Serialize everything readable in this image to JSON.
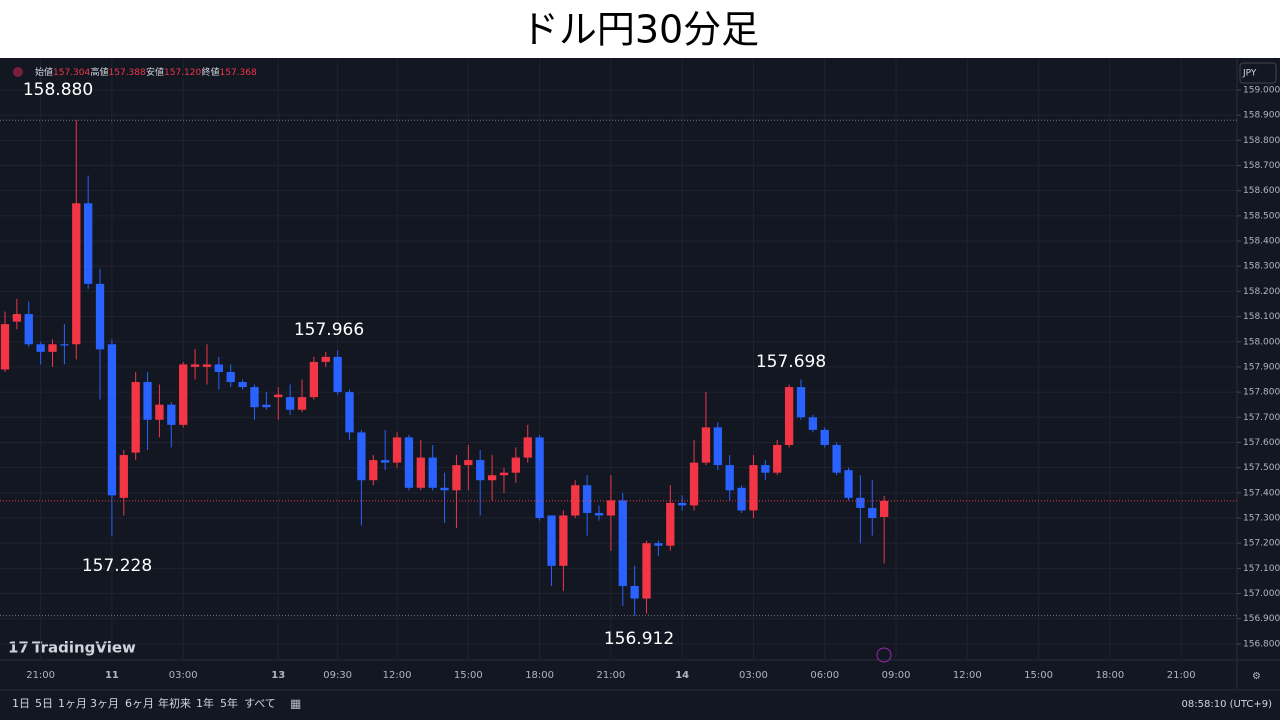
{
  "chart_data": {
    "type": "candlestick",
    "title": "ドル円30分足",
    "header": [
      {
        "label": "始値",
        "value": "157.304"
      },
      {
        "label": "高値",
        "value": "157.388"
      },
      {
        "label": "安値",
        "value": "157.120"
      },
      {
        "label": "終値",
        "value": "157.368"
      }
    ],
    "currency": "JPY",
    "logo": "TradingView",
    "annotations": [
      "158.880",
      "157.228",
      "157.966",
      "156.912",
      "157.698"
    ],
    "up_color": "#f23645",
    "down_color": "#2962ff",
    "grid": true,
    "x": [
      0,
      1,
      2,
      3,
      4,
      5,
      6,
      7,
      8,
      9,
      10,
      11,
      12,
      13,
      14,
      15,
      16,
      17,
      18,
      19,
      20,
      21,
      22,
      23,
      24,
      25,
      26,
      27,
      28,
      29,
      30,
      31,
      32,
      33,
      34,
      35,
      36,
      37,
      38,
      39,
      40,
      41,
      42,
      43,
      44,
      45,
      46,
      47,
      48,
      49,
      50,
      51,
      52,
      53,
      54,
      55,
      56,
      57,
      58,
      59,
      60,
      61,
      62,
      63,
      64,
      65,
      66,
      67,
      68,
      69,
      70,
      71,
      72,
      73,
      74
    ],
    "open": [
      157.89,
      158.08,
      158.11,
      157.99,
      157.96,
      157.99,
      157.99,
      158.55,
      158.23,
      157.99,
      157.38,
      157.56,
      157.84,
      157.69,
      157.75,
      157.67,
      157.9,
      157.9,
      157.91,
      157.88,
      157.84,
      157.82,
      157.75,
      157.78,
      157.78,
      157.73,
      157.78,
      157.92,
      157.94,
      157.8,
      157.64,
      157.45,
      157.53,
      157.52,
      157.62,
      157.42,
      157.54,
      157.42,
      157.41,
      157.51,
      157.53,
      157.45,
      157.47,
      157.48,
      157.54,
      157.62,
      157.31,
      157.11,
      157.31,
      157.43,
      157.32,
      157.31,
      157.37,
      157.03,
      156.98,
      157.2,
      157.19,
      157.36,
      157.35,
      157.52,
      157.66,
      157.51,
      157.42,
      157.33,
      157.51,
      157.48,
      157.59,
      157.82,
      157.7,
      157.65,
      157.59,
      157.49,
      157.38,
      157.34,
      157.304
    ],
    "high": [
      158.12,
      158.17,
      158.16,
      158.0,
      158.01,
      158.07,
      158.88,
      158.66,
      158.29,
      158.01,
      157.57,
      157.88,
      157.88,
      157.83,
      157.76,
      157.92,
      157.97,
      157.99,
      157.94,
      157.91,
      157.85,
      157.83,
      157.8,
      157.82,
      157.83,
      157.85,
      157.94,
      157.96,
      157.966,
      157.81,
      157.65,
      157.55,
      157.65,
      157.64,
      157.63,
      157.61,
      157.59,
      157.48,
      157.55,
      157.59,
      157.57,
      157.55,
      157.5,
      157.58,
      157.67,
      157.63,
      157.31,
      157.33,
      157.45,
      157.47,
      157.35,
      157.47,
      157.4,
      157.11,
      157.21,
      157.21,
      157.43,
      157.39,
      157.61,
      157.8,
      157.68,
      157.55,
      157.43,
      157.55,
      157.53,
      157.61,
      157.83,
      157.85,
      157.71,
      157.66,
      157.6,
      157.5,
      157.47,
      157.45,
      157.388
    ],
    "low": [
      157.88,
      158.05,
      157.98,
      157.91,
      157.9,
      157.91,
      157.93,
      158.21,
      157.77,
      157.228,
      157.31,
      157.53,
      157.57,
      157.62,
      157.58,
      157.66,
      157.85,
      157.83,
      157.81,
      157.82,
      157.81,
      157.69,
      157.73,
      157.69,
      157.71,
      157.72,
      157.77,
      157.9,
      157.79,
      157.61,
      157.27,
      157.43,
      157.49,
      157.5,
      157.41,
      157.41,
      157.41,
      157.28,
      157.26,
      157.41,
      157.31,
      157.37,
      157.4,
      157.44,
      157.52,
      157.29,
      157.03,
      157.01,
      157.3,
      157.23,
      157.29,
      157.17,
      156.95,
      156.912,
      156.92,
      157.15,
      157.17,
      157.33,
      157.33,
      157.51,
      157.49,
      157.37,
      157.32,
      157.3,
      157.45,
      157.47,
      157.58,
      157.69,
      157.64,
      157.58,
      157.47,
      157.37,
      157.2,
      157.23,
      157.12
    ],
    "close": [
      158.07,
      158.11,
      157.99,
      157.96,
      157.99,
      157.985,
      158.55,
      158.23,
      157.97,
      157.39,
      157.55,
      157.84,
      157.69,
      157.75,
      157.67,
      157.91,
      157.91,
      157.91,
      157.88,
      157.84,
      157.82,
      157.74,
      157.74,
      157.79,
      157.73,
      157.78,
      157.92,
      157.94,
      157.8,
      157.64,
      157.45,
      157.53,
      157.52,
      157.62,
      157.42,
      157.54,
      157.42,
      157.41,
      157.51,
      157.53,
      157.45,
      157.47,
      157.48,
      157.54,
      157.62,
      157.3,
      157.11,
      157.31,
      157.43,
      157.32,
      157.31,
      157.37,
      157.03,
      156.98,
      157.2,
      157.19,
      157.36,
      157.35,
      157.52,
      157.66,
      157.51,
      157.41,
      157.33,
      157.51,
      157.48,
      157.59,
      157.82,
      157.7,
      157.65,
      157.59,
      157.48,
      157.38,
      157.34,
      157.3,
      157.368
    ],
    "xlim": [
      -0.42,
      103.7
    ],
    "xticks": [
      {
        "value": 3,
        "label": "21:00"
      },
      {
        "value": 9,
        "label": "11"
      },
      {
        "value": 15,
        "label": "03:00"
      },
      {
        "value": 23,
        "label": "13"
      },
      {
        "value": 28,
        "label": "09:30"
      },
      {
        "value": 33,
        "label": "12:00"
      },
      {
        "value": 39,
        "label": "15:00"
      },
      {
        "value": 45,
        "label": "18:00"
      },
      {
        "value": 51,
        "label": "21:00"
      },
      {
        "value": 57,
        "label": "14"
      },
      {
        "value": 63,
        "label": "03:00"
      },
      {
        "value": 69,
        "label": "06:00"
      },
      {
        "value": 75,
        "label": "09:00"
      },
      {
        "value": 81,
        "label": "12:00"
      },
      {
        "value": 87,
        "label": "15:00"
      },
      {
        "value": 93,
        "label": "18:00"
      },
      {
        "value": 99,
        "label": "21:00"
      }
    ],
    "ylim": [
      156.736,
      159.127
    ],
    "yticks": [
      {
        "value": 156.8,
        "label": "156.800"
      },
      {
        "value": 156.9,
        "label": "156.900"
      },
      {
        "value": 157.0,
        "label": "157.000"
      },
      {
        "value": 157.1,
        "label": "157.100"
      },
      {
        "value": 157.2,
        "label": "157.200"
      },
      {
        "value": 157.3,
        "label": "157.300"
      },
      {
        "value": 157.4,
        "label": "157.400"
      },
      {
        "value": 157.5,
        "label": "157.500"
      },
      {
        "value": 157.6,
        "label": "157.600"
      },
      {
        "value": 157.7,
        "label": "157.700"
      },
      {
        "value": 157.8,
        "label": "157.800"
      },
      {
        "value": 157.9,
        "label": "157.900"
      },
      {
        "value": 158.0,
        "label": "158.000"
      },
      {
        "value": 158.1,
        "label": "158.100"
      },
      {
        "value": 158.2,
        "label": "158.200"
      },
      {
        "value": 158.3,
        "label": "158.300"
      },
      {
        "value": 158.4,
        "label": "158.400"
      },
      {
        "value": 158.5,
        "label": "158.500"
      },
      {
        "value": 158.6,
        "label": "158.600"
      },
      {
        "value": 158.7,
        "label": "158.700"
      },
      {
        "value": 158.8,
        "label": "158.800"
      },
      {
        "value": 158.9,
        "label": "158.900"
      },
      {
        "value": 159.0,
        "label": "159.000"
      }
    ],
    "range_buttons": [
      "1日",
      "5日",
      "1ヶ月",
      "3ヶ月",
      "6ヶ月",
      "年初来",
      "1年",
      "5年",
      "すべて"
    ],
    "clock": "08:58:10 (UTC+9)"
  }
}
